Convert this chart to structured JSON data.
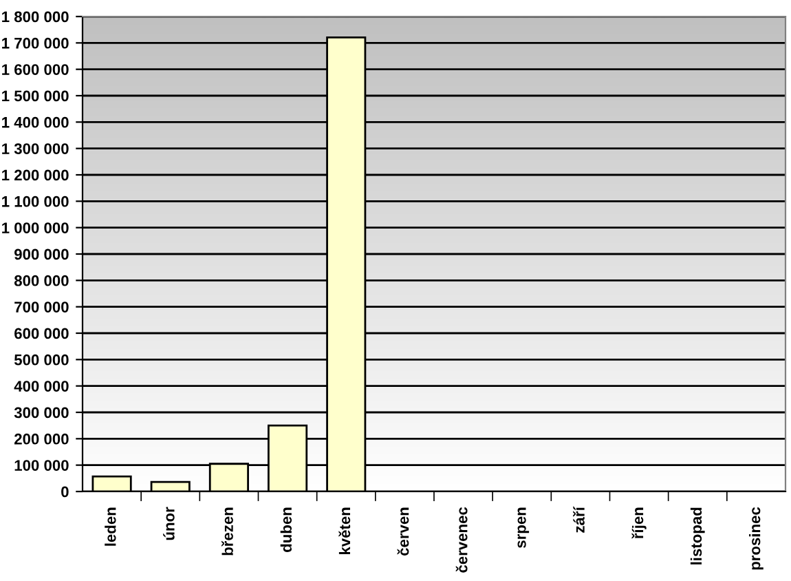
{
  "chart_data": {
    "type": "bar",
    "categories": [
      "leden",
      "únor",
      "březen",
      "duben",
      "květen",
      "červen",
      "červenec",
      "srpen",
      "září",
      "říjen",
      "listopad",
      "prosinec"
    ],
    "values": [
      57000,
      36000,
      105000,
      250000,
      1721000,
      null,
      null,
      null,
      null,
      null,
      null,
      null
    ],
    "color": "#ffffcc",
    "ylim": [
      0,
      1800000
    ],
    "yticks": [
      {
        "value": 0,
        "label": "0"
      },
      {
        "value": 100000,
        "label": "100 000"
      },
      {
        "value": 200000,
        "label": "200 000"
      },
      {
        "value": 300000,
        "label": "300 000"
      },
      {
        "value": 400000,
        "label": "400 000"
      },
      {
        "value": 500000,
        "label": "500 000"
      },
      {
        "value": 600000,
        "label": "600 000"
      },
      {
        "value": 700000,
        "label": "700 000"
      },
      {
        "value": 800000,
        "label": "800 000"
      },
      {
        "value": 900000,
        "label": "900 000"
      },
      {
        "value": 1000000,
        "label": "1 000 000"
      },
      {
        "value": 1100000,
        "label": "1 100 000"
      },
      {
        "value": 1200000,
        "label": "1 200 000"
      },
      {
        "value": 1300000,
        "label": "1 300 000"
      },
      {
        "value": 1400000,
        "label": "1 400 000"
      },
      {
        "value": 1500000,
        "label": "1 500 000"
      },
      {
        "value": 1600000,
        "label": "1 600 000"
      },
      {
        "value": 1700000,
        "label": "1 700 000"
      },
      {
        "value": 1800000,
        "label": "1 800 000"
      }
    ],
    "grid": "y"
  }
}
